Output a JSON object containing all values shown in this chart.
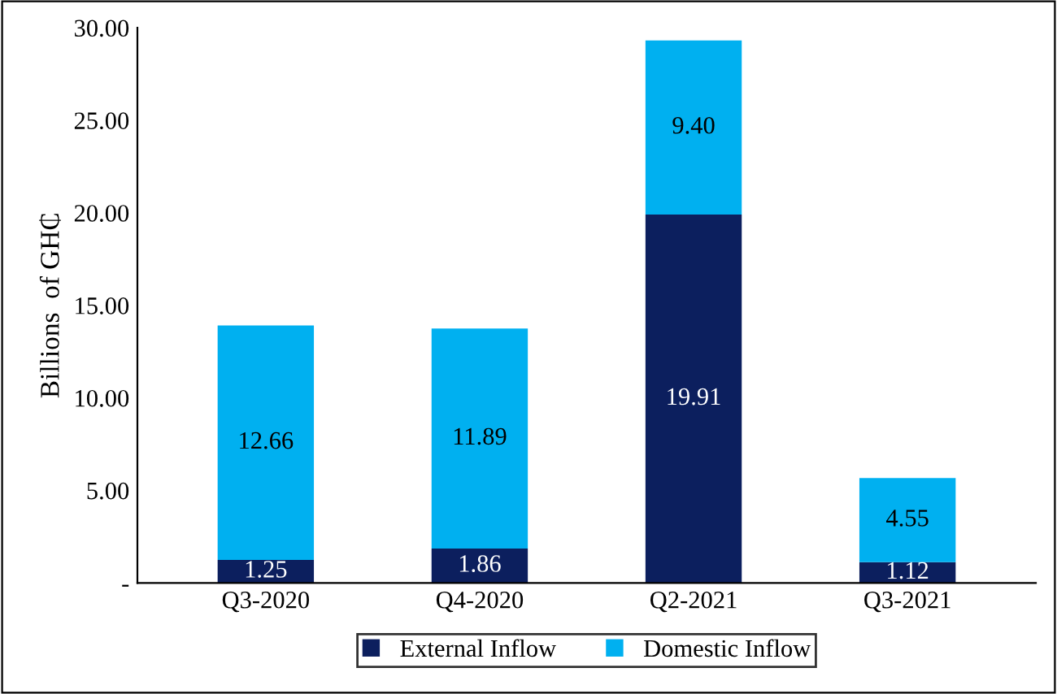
{
  "chart_data": {
    "type": "bar",
    "stacked": true,
    "ylabel": "Billions  of GH₵",
    "categories": [
      "Q3-2020",
      "Q4-2020",
      "Q2-2021",
      "Q3-2021"
    ],
    "series": [
      {
        "name": "External Inflow",
        "color": "#0c1f5e",
        "values": [
          1.25,
          1.86,
          19.91,
          1.12
        ],
        "value_labels": [
          "1.25",
          "1.86",
          "19.91",
          "1.12"
        ]
      },
      {
        "name": "Domestic Inflow",
        "color": "#00b0f0",
        "values": [
          12.66,
          11.89,
          9.4,
          4.55
        ],
        "value_labels": [
          "12.66",
          "11.89",
          "9.40",
          "4.55"
        ]
      }
    ],
    "ylim": [
      0,
      30
    ],
    "yticks": [
      {
        "value": 0,
        "label": "-"
      },
      {
        "value": 5,
        "label": "5.00"
      },
      {
        "value": 10,
        "label": "10.00"
      },
      {
        "value": 15,
        "label": "15.00"
      },
      {
        "value": 20,
        "label": "20.00"
      },
      {
        "value": 25,
        "label": "25.00"
      },
      {
        "value": 30,
        "label": "30.00"
      }
    ],
    "grid": false,
    "legend": "bottom"
  }
}
